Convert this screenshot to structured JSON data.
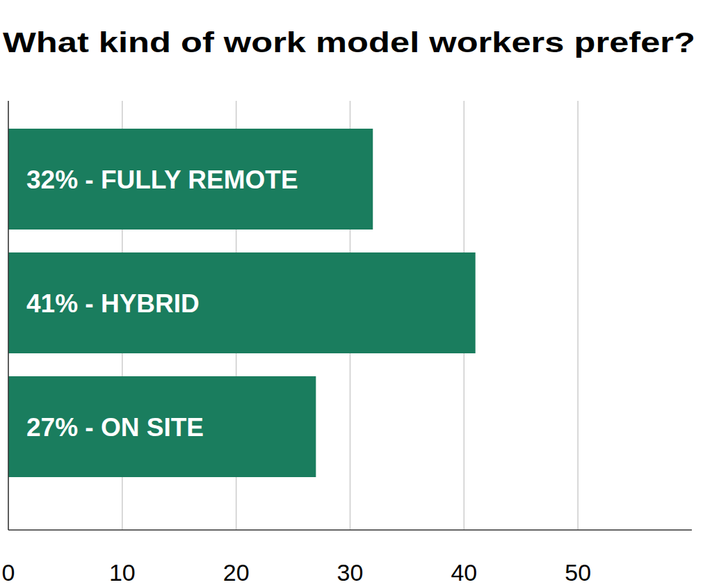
{
  "chart_data": {
    "type": "bar",
    "orientation": "horizontal",
    "title": "What kind of work model workers prefer?",
    "categories": [
      "32% - FULLY REMOTE",
      "41% - HYBRID",
      "27% - ON SITE"
    ],
    "values": [
      32,
      41,
      27
    ],
    "color": "#1a7d5e",
    "xlim": [
      0,
      60
    ],
    "xticks": [
      0,
      10,
      20,
      30,
      40,
      50
    ],
    "grid": true,
    "tick_labels": "x"
  }
}
